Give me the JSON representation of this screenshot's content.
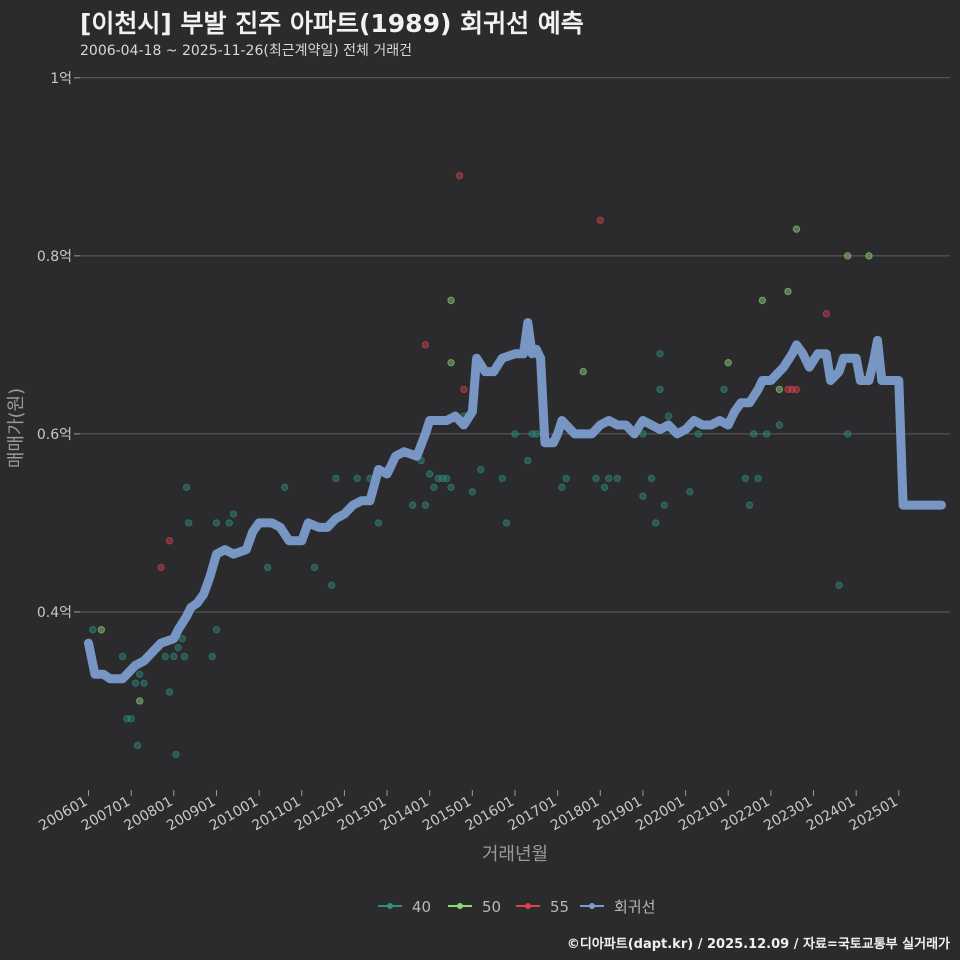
{
  "header": {
    "title": "[이천시] 부발 진주 아파트(1989) 회귀선 예측",
    "subtitle": "2006-04-18 ~ 2025-11-26(최근계약일) 전체 거래건"
  },
  "footer": {
    "credit": "©디아파트(dapt.kr) / 2025.12.09 / 자료=국토교통부 실거래가"
  },
  "colors": {
    "40": "#2f8f7f",
    "50": "#8ed67a",
    "55": "#d9414e",
    "regression": "#7b9ccc",
    "grid": "#5e5e5e",
    "background": "#2b2a2c"
  },
  "chart_data": {
    "type": "scatter",
    "xlabel": "거래년월",
    "ylabel": "매매가(원)",
    "ylim": [
      0.2,
      1.02
    ],
    "y_unit": "억",
    "y_ticks": [
      {
        "value": 0.4,
        "label": "0.4억"
      },
      {
        "value": 0.6,
        "label": "0.6억"
      },
      {
        "value": 0.8,
        "label": "0.8억"
      },
      {
        "value": 1.0,
        "label": "1억"
      }
    ],
    "x_range": [
      2005.8,
      2026.2
    ],
    "x_ticks": [
      {
        "value": 2006.0,
        "label": "200601"
      },
      {
        "value": 2007.0,
        "label": "200701"
      },
      {
        "value": 2008.0,
        "label": "200801"
      },
      {
        "value": 2009.0,
        "label": "200901"
      },
      {
        "value": 2010.0,
        "label": "201001"
      },
      {
        "value": 2011.0,
        "label": "201101"
      },
      {
        "value": 2012.0,
        "label": "201201"
      },
      {
        "value": 2013.0,
        "label": "201301"
      },
      {
        "value": 2014.0,
        "label": "201401"
      },
      {
        "value": 2015.0,
        "label": "201501"
      },
      {
        "value": 2016.0,
        "label": "201601"
      },
      {
        "value": 2017.0,
        "label": "201701"
      },
      {
        "value": 2018.0,
        "label": "201801"
      },
      {
        "value": 2019.0,
        "label": "201901"
      },
      {
        "value": 2020.0,
        "label": "202001"
      },
      {
        "value": 2021.0,
        "label": "202101"
      },
      {
        "value": 2022.0,
        "label": "202201"
      },
      {
        "value": 2023.0,
        "label": "202301"
      },
      {
        "value": 2024.0,
        "label": "202401"
      },
      {
        "value": 2025.0,
        "label": "202501"
      }
    ],
    "legend": [
      "40",
      "50",
      "55",
      "회귀선"
    ],
    "series": [
      {
        "name": "40",
        "points": [
          [
            2006.1,
            0.38
          ],
          [
            2006.8,
            0.35
          ],
          [
            2006.9,
            0.28
          ],
          [
            2007.0,
            0.28
          ],
          [
            2007.1,
            0.32
          ],
          [
            2007.15,
            0.25
          ],
          [
            2007.2,
            0.33
          ],
          [
            2007.3,
            0.32
          ],
          [
            2007.4,
            0.35
          ],
          [
            2007.8,
            0.35
          ],
          [
            2007.9,
            0.31
          ],
          [
            2008.0,
            0.35
          ],
          [
            2008.05,
            0.24
          ],
          [
            2008.1,
            0.36
          ],
          [
            2008.2,
            0.37
          ],
          [
            2008.25,
            0.35
          ],
          [
            2008.3,
            0.54
          ],
          [
            2008.35,
            0.5
          ],
          [
            2008.9,
            0.35
          ],
          [
            2009.0,
            0.38
          ],
          [
            2009.0,
            0.5
          ],
          [
            2009.3,
            0.5
          ],
          [
            2009.4,
            0.51
          ],
          [
            2010.2,
            0.45
          ],
          [
            2010.6,
            0.54
          ],
          [
            2011.3,
            0.45
          ],
          [
            2011.7,
            0.43
          ],
          [
            2011.8,
            0.55
          ],
          [
            2012.3,
            0.55
          ],
          [
            2012.6,
            0.55
          ],
          [
            2012.8,
            0.5
          ],
          [
            2013.6,
            0.52
          ],
          [
            2013.8,
            0.57
          ],
          [
            2013.9,
            0.52
          ],
          [
            2014.0,
            0.555
          ],
          [
            2014.1,
            0.54
          ],
          [
            2014.2,
            0.55
          ],
          [
            2014.3,
            0.55
          ],
          [
            2014.4,
            0.55
          ],
          [
            2014.8,
            0.62
          ],
          [
            2015.0,
            0.535
          ],
          [
            2015.2,
            0.56
          ],
          [
            2015.7,
            0.55
          ],
          [
            2015.8,
            0.5
          ],
          [
            2016.0,
            0.6
          ],
          [
            2016.3,
            0.57
          ],
          [
            2016.4,
            0.6
          ],
          [
            2017.1,
            0.54
          ],
          [
            2017.2,
            0.55
          ],
          [
            2017.9,
            0.55
          ],
          [
            2018.1,
            0.54
          ],
          [
            2018.2,
            0.55
          ],
          [
            2018.4,
            0.55
          ],
          [
            2019.0,
            0.53
          ],
          [
            2019.2,
            0.55
          ],
          [
            2019.3,
            0.5
          ],
          [
            2019.4,
            0.69
          ],
          [
            2019.5,
            0.52
          ],
          [
            2020.1,
            0.535
          ],
          [
            2020.3,
            0.6
          ],
          [
            2020.9,
            0.65
          ],
          [
            2021.4,
            0.55
          ],
          [
            2021.5,
            0.52
          ],
          [
            2021.6,
            0.6
          ],
          [
            2021.7,
            0.55
          ],
          [
            2021.9,
            0.6
          ],
          [
            2022.2,
            0.61
          ],
          [
            2023.6,
            0.43
          ],
          [
            2023.8,
            0.6
          ],
          [
            2019.0,
            0.6
          ],
          [
            2019.6,
            0.62
          ],
          [
            2019.4,
            0.65
          ],
          [
            2016.5,
            0.6
          ],
          [
            2014.5,
            0.54
          ]
        ]
      },
      {
        "name": "50",
        "points": [
          [
            2006.3,
            0.38
          ],
          [
            2007.2,
            0.3
          ],
          [
            2014.5,
            0.75
          ],
          [
            2014.5,
            0.68
          ],
          [
            2017.6,
            0.67
          ],
          [
            2021.0,
            0.68
          ],
          [
            2021.8,
            0.75
          ],
          [
            2022.4,
            0.76
          ],
          [
            2022.6,
            0.83
          ],
          [
            2023.8,
            0.8
          ],
          [
            2024.3,
            0.8
          ],
          [
            2022.2,
            0.65
          ]
        ]
      },
      {
        "name": "55",
        "points": [
          [
            2007.7,
            0.45
          ],
          [
            2007.9,
            0.48
          ],
          [
            2013.9,
            0.7
          ],
          [
            2014.7,
            0.89
          ],
          [
            2014.8,
            0.65
          ],
          [
            2018.0,
            0.84
          ],
          [
            2022.4,
            0.65
          ],
          [
            2022.5,
            0.65
          ],
          [
            2022.6,
            0.65
          ],
          [
            2023.3,
            0.735
          ]
        ]
      }
    ],
    "regression": {
      "name": "회귀선",
      "points": [
        [
          2006.0,
          0.365
        ],
        [
          2006.15,
          0.33
        ],
        [
          2006.35,
          0.33
        ],
        [
          2006.5,
          0.325
        ],
        [
          2006.8,
          0.325
        ],
        [
          2006.9,
          0.33
        ],
        [
          2007.1,
          0.34
        ],
        [
          2007.3,
          0.345
        ],
        [
          2007.5,
          0.355
        ],
        [
          2007.7,
          0.365
        ],
        [
          2008.0,
          0.37
        ],
        [
          2008.1,
          0.38
        ],
        [
          2008.3,
          0.395
        ],
        [
          2008.4,
          0.405
        ],
        [
          2008.55,
          0.41
        ],
        [
          2008.7,
          0.42
        ],
        [
          2008.85,
          0.44
        ],
        [
          2009.0,
          0.465
        ],
        [
          2009.2,
          0.47
        ],
        [
          2009.4,
          0.465
        ],
        [
          2009.7,
          0.47
        ],
        [
          2009.85,
          0.49
        ],
        [
          2010.0,
          0.5
        ],
        [
          2010.3,
          0.5
        ],
        [
          2010.5,
          0.495
        ],
        [
          2010.7,
          0.48
        ],
        [
          2011.0,
          0.48
        ],
        [
          2011.15,
          0.5
        ],
        [
          2011.4,
          0.495
        ],
        [
          2011.6,
          0.495
        ],
        [
          2011.8,
          0.505
        ],
        [
          2012.0,
          0.51
        ],
        [
          2012.2,
          0.52
        ],
        [
          2012.4,
          0.525
        ],
        [
          2012.6,
          0.525
        ],
        [
          2012.8,
          0.56
        ],
        [
          2013.0,
          0.555
        ],
        [
          2013.2,
          0.575
        ],
        [
          2013.4,
          0.58
        ],
        [
          2013.7,
          0.575
        ],
        [
          2013.9,
          0.6
        ],
        [
          2014.0,
          0.615
        ],
        [
          2014.2,
          0.615
        ],
        [
          2014.4,
          0.615
        ],
        [
          2014.6,
          0.62
        ],
        [
          2014.8,
          0.61
        ],
        [
          2015.0,
          0.625
        ],
        [
          2015.1,
          0.685
        ],
        [
          2015.3,
          0.67
        ],
        [
          2015.5,
          0.67
        ],
        [
          2015.7,
          0.685
        ],
        [
          2016.0,
          0.69
        ],
        [
          2016.2,
          0.69
        ],
        [
          2016.3,
          0.725
        ],
        [
          2016.4,
          0.69
        ],
        [
          2016.5,
          0.695
        ],
        [
          2016.6,
          0.685
        ],
        [
          2016.7,
          0.59
        ],
        [
          2016.9,
          0.59
        ],
        [
          2017.0,
          0.6
        ],
        [
          2017.1,
          0.615
        ],
        [
          2017.4,
          0.6
        ],
        [
          2017.6,
          0.6
        ],
        [
          2017.8,
          0.6
        ],
        [
          2018.0,
          0.61
        ],
        [
          2018.2,
          0.615
        ],
        [
          2018.4,
          0.61
        ],
        [
          2018.6,
          0.61
        ],
        [
          2018.8,
          0.6
        ],
        [
          2019.0,
          0.615
        ],
        [
          2019.2,
          0.61
        ],
        [
          2019.4,
          0.605
        ],
        [
          2019.6,
          0.61
        ],
        [
          2019.8,
          0.6
        ],
        [
          2020.0,
          0.605
        ],
        [
          2020.2,
          0.615
        ],
        [
          2020.4,
          0.61
        ],
        [
          2020.6,
          0.61
        ],
        [
          2020.8,
          0.615
        ],
        [
          2021.0,
          0.61
        ],
        [
          2021.15,
          0.625
        ],
        [
          2021.3,
          0.635
        ],
        [
          2021.5,
          0.635
        ],
        [
          2021.7,
          0.65
        ],
        [
          2021.8,
          0.66
        ],
        [
          2022.0,
          0.66
        ],
        [
          2022.1,
          0.665
        ],
        [
          2022.3,
          0.675
        ],
        [
          2022.5,
          0.69
        ],
        [
          2022.6,
          0.7
        ],
        [
          2022.75,
          0.69
        ],
        [
          2022.9,
          0.675
        ],
        [
          2023.1,
          0.69
        ],
        [
          2023.3,
          0.69
        ],
        [
          2023.4,
          0.66
        ],
        [
          2023.6,
          0.67
        ],
        [
          2023.7,
          0.685
        ],
        [
          2023.9,
          0.685
        ],
        [
          2024.0,
          0.685
        ],
        [
          2024.1,
          0.66
        ],
        [
          2024.3,
          0.66
        ],
        [
          2024.4,
          0.68
        ],
        [
          2024.5,
          0.705
        ],
        [
          2024.6,
          0.66
        ],
        [
          2024.8,
          0.66
        ],
        [
          2025.0,
          0.66
        ],
        [
          2025.1,
          0.52
        ],
        [
          2025.3,
          0.52
        ],
        [
          2025.6,
          0.52
        ],
        [
          2026.0,
          0.52
        ]
      ]
    }
  }
}
